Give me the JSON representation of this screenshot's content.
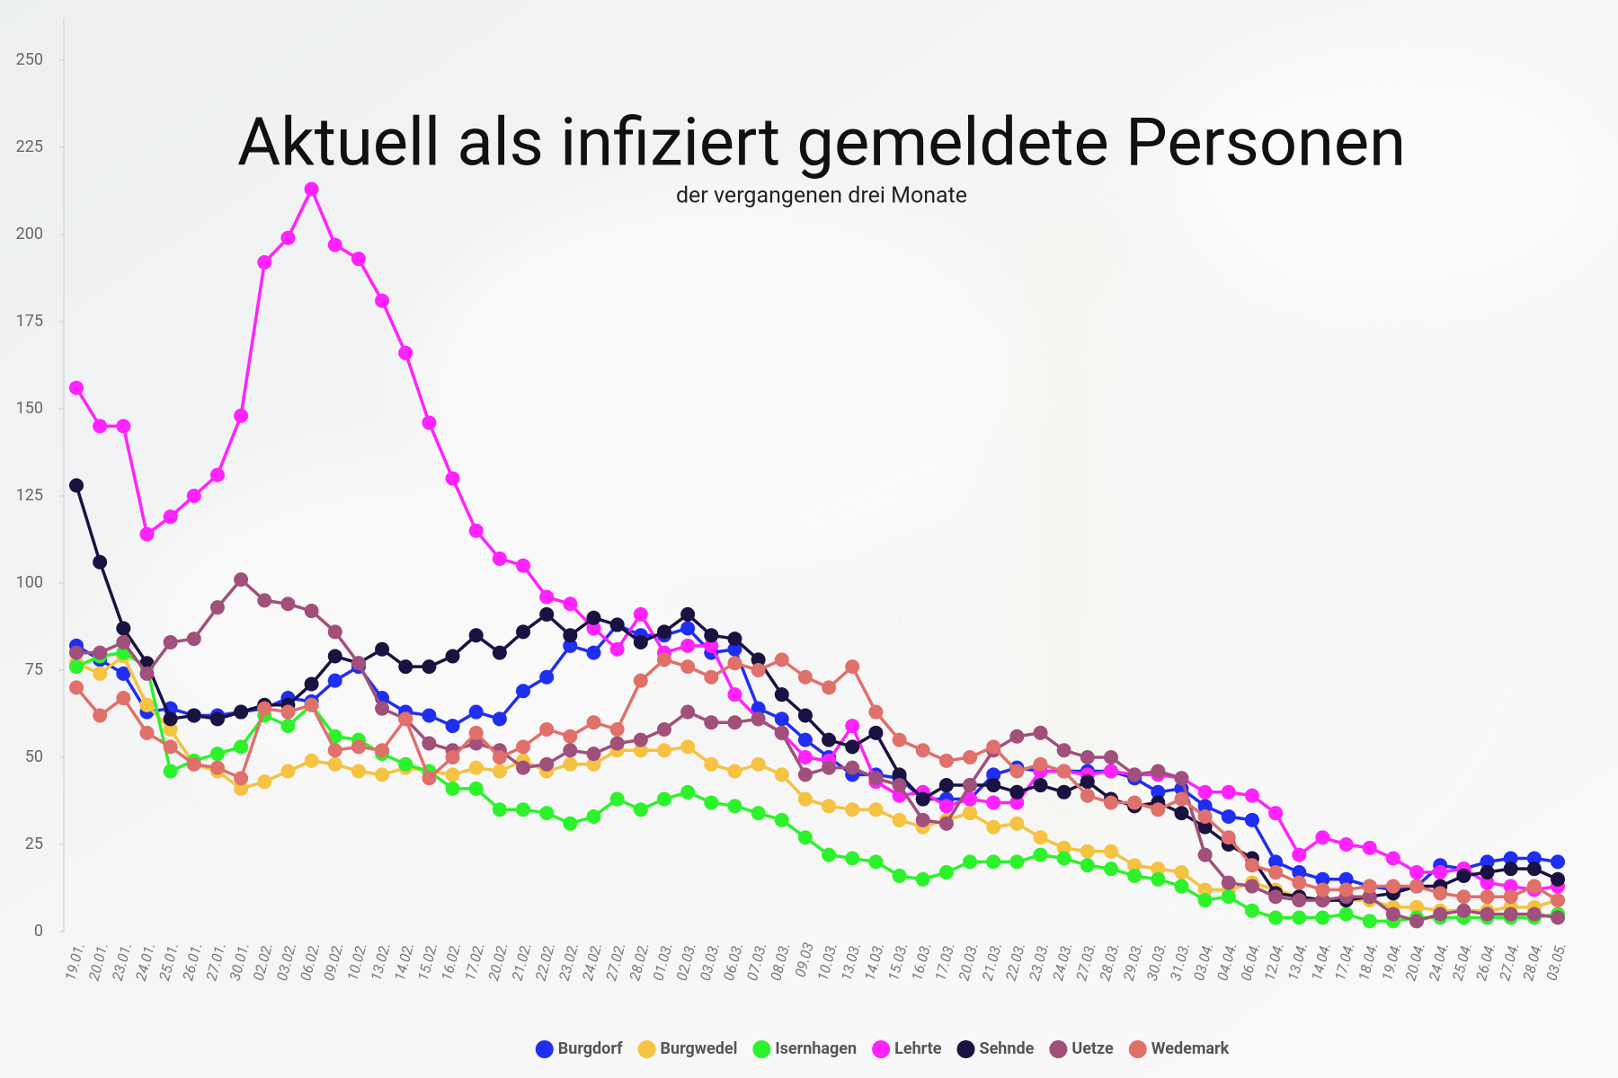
{
  "chart_data": {
    "type": "line",
    "title": "Aktuell als infiziert gemeldete Personen",
    "subtitle": "der vergangenen drei Monate",
    "categories": [
      "19.01.",
      "20.01.",
      "23.01.",
      "24.01.",
      "25.01.",
      "26.01.",
      "27.01.",
      "30.01.",
      "02.02.",
      "03.02.",
      "06.02.",
      "09.02.",
      "10.02.",
      "13.02.",
      "14.02.",
      "15.02.",
      "16.02.",
      "17.02.",
      "20.02.",
      "21.02.",
      "22.02.",
      "23.02.",
      "24.02.",
      "27.02.",
      "28.02.",
      "01.03.",
      "02.03.",
      "03.03.",
      "06.03.",
      "07.03.",
      "08.03.",
      "09.03",
      "10.03.",
      "13.03.",
      "14.03.",
      "15.03.",
      "16.03.",
      "17.03.",
      "20.03.",
      "21.03.",
      "22.03.",
      "23.03.",
      "24.03.",
      "27.03.",
      "28.03.",
      "29.03.",
      "30.03.",
      "31.03.",
      "03.04.",
      "04.04.",
      "06.04.",
      "12.04.",
      "13.04.",
      "14.04.",
      "17.04.",
      "18.04.",
      "19.04.",
      "20.04.",
      "24.04.",
      "25.04.",
      "26.04.",
      "27.04.",
      "28.04.",
      "03.05."
    ],
    "series": [
      {
        "name": "Burgdorf",
        "color": "#1f2ef0",
        "values": [
          82,
          78,
          74,
          63,
          64,
          62,
          62,
          63,
          64,
          67,
          66,
          72,
          76,
          67,
          63,
          62,
          59,
          63,
          61,
          69,
          73,
          82,
          80,
          88,
          85,
          85,
          87,
          80,
          81,
          64,
          61,
          55,
          50,
          45,
          45,
          44,
          38,
          38,
          38,
          45,
          47,
          46,
          46,
          46,
          46,
          44,
          40,
          41,
          36,
          33,
          32,
          20,
          17,
          15,
          15,
          13,
          12,
          13,
          19,
          18,
          20,
          21,
          21,
          20
        ]
      },
      {
        "name": "Burgwedel",
        "color": "#f5c242",
        "values": [
          77,
          74,
          79,
          65,
          58,
          48,
          46,
          41,
          43,
          46,
          49,
          48,
          46,
          45,
          47,
          46,
          45,
          47,
          46,
          49,
          46,
          48,
          48,
          52,
          52,
          52,
          53,
          48,
          46,
          48,
          45,
          38,
          36,
          35,
          35,
          32,
          30,
          32,
          34,
          30,
          31,
          27,
          24,
          23,
          23,
          19,
          18,
          17,
          12,
          12,
          14,
          12,
          10,
          9,
          9,
          9,
          7,
          7,
          6,
          6,
          6,
          7,
          7,
          9
        ]
      },
      {
        "name": "Isernhagen",
        "color": "#2cf22c",
        "values": [
          76,
          79,
          80,
          76,
          46,
          49,
          51,
          53,
          62,
          59,
          65,
          56,
          55,
          51,
          48,
          46,
          41,
          41,
          35,
          35,
          34,
          31,
          33,
          38,
          35,
          38,
          40,
          37,
          36,
          34,
          32,
          27,
          22,
          21,
          20,
          16,
          15,
          17,
          20,
          20,
          20,
          22,
          21,
          19,
          18,
          16,
          15,
          13,
          9,
          10,
          6,
          4,
          4,
          4,
          5,
          3,
          3,
          4,
          4,
          4,
          4,
          4,
          4,
          5
        ]
      },
      {
        "name": "Lehrte",
        "color": "#ff22ff",
        "values": [
          156,
          145,
          145,
          114,
          119,
          125,
          131,
          148,
          192,
          199,
          213,
          197,
          193,
          181,
          166,
          146,
          130,
          115,
          107,
          105,
          96,
          94,
          87,
          81,
          91,
          80,
          82,
          82,
          68,
          61,
          57,
          50,
          49,
          59,
          43,
          39,
          40,
          36,
          38,
          37,
          37,
          46,
          46,
          45,
          46,
          45,
          45,
          44,
          40,
          40,
          39,
          34,
          22,
          27,
          25,
          24,
          21,
          17,
          17,
          18,
          14,
          13,
          12,
          13
        ]
      },
      {
        "name": "Sehnde",
        "color": "#1a1240",
        "values": [
          128,
          106,
          87,
          77,
          61,
          62,
          61,
          63,
          65,
          65,
          71,
          79,
          77,
          81,
          76,
          76,
          79,
          85,
          80,
          86,
          91,
          85,
          90,
          88,
          83,
          86,
          91,
          85,
          84,
          78,
          68,
          62,
          55,
          53,
          57,
          45,
          38,
          42,
          42,
          42,
          40,
          42,
          40,
          43,
          38,
          36,
          37,
          34,
          30,
          25,
          21,
          11,
          10,
          9,
          9,
          10,
          11,
          13,
          13,
          16,
          17,
          18,
          18,
          15
        ]
      },
      {
        "name": "Uetze",
        "color": "#a0507a",
        "values": [
          80,
          80,
          83,
          74,
          83,
          84,
          93,
          101,
          95,
          94,
          92,
          86,
          77,
          64,
          61,
          54,
          52,
          54,
          52,
          47,
          48,
          52,
          51,
          54,
          55,
          58,
          63,
          60,
          60,
          61,
          57,
          45,
          47,
          47,
          44,
          42,
          32,
          31,
          42,
          52,
          56,
          57,
          52,
          50,
          50,
          45,
          46,
          44,
          22,
          14,
          13,
          10,
          9,
          9,
          10,
          10,
          5,
          3,
          5,
          6,
          5,
          5,
          5,
          4
        ]
      },
      {
        "name": "Wedemark",
        "color": "#e0706a",
        "values": [
          70,
          62,
          67,
          57,
          53,
          48,
          47,
          44,
          64,
          63,
          65,
          52,
          53,
          52,
          61,
          44,
          50,
          57,
          50,
          53,
          58,
          56,
          60,
          58,
          72,
          78,
          76,
          73,
          77,
          75,
          78,
          73,
          70,
          76,
          63,
          55,
          52,
          49,
          50,
          53,
          46,
          48,
          46,
          39,
          37,
          37,
          35,
          38,
          33,
          27,
          19,
          17,
          14,
          12,
          12,
          13,
          13,
          13,
          11,
          10,
          10,
          10,
          13,
          9
        ]
      }
    ],
    "ylim": [
      0,
      250
    ],
    "yticks": [
      0,
      25,
      50,
      75,
      100,
      125,
      150,
      175,
      200,
      225,
      250
    ],
    "grid": false
  }
}
